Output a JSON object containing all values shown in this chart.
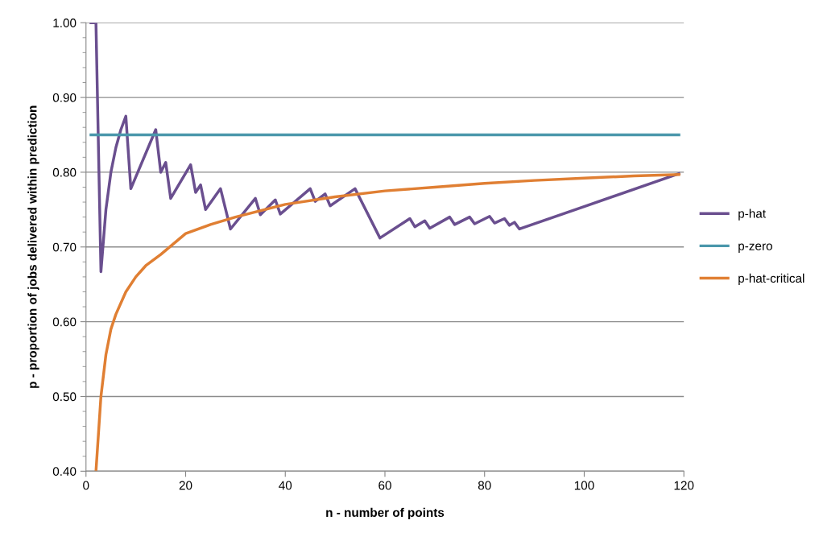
{
  "chart_data": {
    "type": "line",
    "xlabel": "n - number of points",
    "ylabel": "p - proportion of jobs delivered within prediction",
    "xlim": [
      0,
      120
    ],
    "xticks": [
      0,
      20,
      40,
      60,
      80,
      100,
      120
    ],
    "ylim": [
      0.4,
      1.0
    ],
    "yticks": [
      {
        "value": 0.4,
        "label": "0.40"
      },
      {
        "value": 0.42,
        "label": null
      },
      {
        "value": 0.44,
        "label": null
      },
      {
        "value": 0.46,
        "label": null
      },
      {
        "value": 0.48,
        "label": null
      },
      {
        "value": 0.5,
        "label": "0.50"
      },
      {
        "value": 0.52,
        "label": null
      },
      {
        "value": 0.54,
        "label": null
      },
      {
        "value": 0.56,
        "label": null
      },
      {
        "value": 0.58,
        "label": null
      },
      {
        "value": 0.6,
        "label": "0.60"
      },
      {
        "value": 0.62,
        "label": null
      },
      {
        "value": 0.64,
        "label": null
      },
      {
        "value": 0.66,
        "label": null
      },
      {
        "value": 0.68,
        "label": null
      },
      {
        "value": 0.7,
        "label": "0.70"
      },
      {
        "value": 0.72,
        "label": null
      },
      {
        "value": 0.74,
        "label": null
      },
      {
        "value": 0.76,
        "label": null
      },
      {
        "value": 0.78,
        "label": null
      },
      {
        "value": 0.8,
        "label": "0.80"
      },
      {
        "value": 0.82,
        "label": null
      },
      {
        "value": 0.84,
        "label": null
      },
      {
        "value": 0.86,
        "label": null
      },
      {
        "value": 0.88,
        "label": null
      },
      {
        "value": 0.9,
        "label": "0.90"
      },
      {
        "value": 0.92,
        "label": null
      },
      {
        "value": 0.94,
        "label": null
      },
      {
        "value": 0.96,
        "label": null
      },
      {
        "value": 0.98,
        "label": null
      },
      {
        "value": 1.0,
        "label": "1.00"
      }
    ],
    "grid": "y",
    "legend": "right",
    "marker": "none",
    "series": [
      {
        "name": "p-hat",
        "color": "#6a4f8f",
        "x": [
          1,
          2,
          3,
          4,
          5,
          6,
          7,
          8,
          9,
          14,
          15,
          16,
          17,
          21,
          22,
          23,
          24,
          27,
          29,
          34,
          35,
          38,
          39,
          45,
          46,
          48,
          49,
          54,
          59,
          65,
          66,
          68,
          69,
          73,
          74,
          77,
          78,
          81,
          82,
          84,
          85,
          86,
          87,
          119
        ],
        "values": [
          1.0,
          1.0,
          0.667,
          0.75,
          0.8,
          0.833,
          0.857,
          0.875,
          0.778,
          0.857,
          0.8,
          0.813,
          0.765,
          0.81,
          0.773,
          0.783,
          0.75,
          0.778,
          0.724,
          0.765,
          0.743,
          0.763,
          0.744,
          0.778,
          0.761,
          0.771,
          0.755,
          0.778,
          0.712,
          0.738,
          0.727,
          0.735,
          0.725,
          0.74,
          0.73,
          0.74,
          0.731,
          0.741,
          0.732,
          0.738,
          0.729,
          0.733,
          0.724,
          0.798
        ]
      },
      {
        "name": "p-zero",
        "color": "#4a97ab",
        "x": [
          1,
          119
        ],
        "values": [
          0.85,
          0.85
        ]
      },
      {
        "name": "p-hat-critical",
        "color": "#e07f33",
        "x": [
          2,
          3,
          4,
          5,
          6,
          8,
          10,
          12,
          15,
          20,
          25,
          30,
          40,
          50,
          60,
          70,
          80,
          90,
          100,
          110,
          119
        ],
        "values": [
          0.4,
          0.5,
          0.556,
          0.59,
          0.61,
          0.64,
          0.66,
          0.675,
          0.69,
          0.718,
          0.73,
          0.74,
          0.757,
          0.767,
          0.775,
          0.78,
          0.785,
          0.789,
          0.792,
          0.795,
          0.797
        ]
      }
    ]
  }
}
